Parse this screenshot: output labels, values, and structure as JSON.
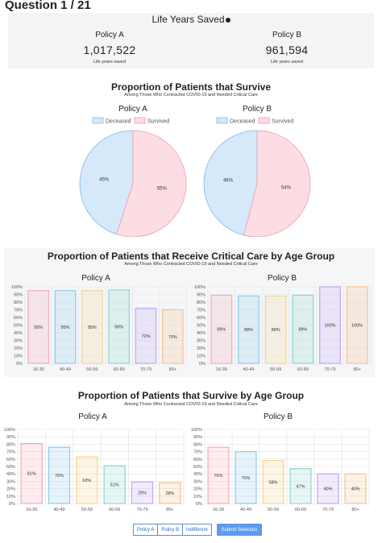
{
  "header": {
    "question": "Question 1 / 21"
  },
  "life_years": {
    "title": "Life Years Saved",
    "info_icon": "info-icon",
    "policy_a": {
      "name": "Policy A",
      "value": "1,017,522",
      "sub": "Life years saved"
    },
    "policy_b": {
      "name": "Policy B",
      "value": "961,594",
      "sub": "Life years saved"
    }
  },
  "colors": {
    "deceased_fill": "#d6e9fa",
    "deceased_line": "#7fb9e6",
    "survived_fill": "#fcdde4",
    "survived_line": "#f29bb0",
    "bar_pink": "#f9a8b8",
    "bar_blue": "#8ec9ee",
    "bar_yellow": "#f8d48f",
    "bar_teal": "#8fd4cf",
    "bar_purple": "#c3a6f2",
    "bar_orange": "#f9c08f",
    "button_accent": "#5b9bf0"
  },
  "sections": {
    "survive": {
      "title": "Proportion of Patients that Survive",
      "subtitle": "Among Those Who Contracted COVID-19 and Needed Critical Care"
    },
    "critical": {
      "title": "Proportion of Patients that Receive Critical Care by Age Group",
      "subtitle": "Among Those Who Contracted COVID-19 and Needed Critical Care"
    },
    "survive_age": {
      "title": "Proportion of Patients that Survive by Age Group",
      "subtitle": "Among Those Who Contracted COVID-19 and Needed Critical Care"
    }
  },
  "buttons": {
    "policy_a": "Policy A",
    "policy_b": "Policy B",
    "indifferent": "Indifferent",
    "submit": "Submit Selection"
  },
  "chart_data": [
    {
      "type": "pie",
      "title": "Policy A",
      "legend": [
        "Deceased",
        "Survived"
      ],
      "legend_position": "top",
      "values": [
        45,
        55
      ],
      "labels": [
        "45%",
        "55%"
      ]
    },
    {
      "type": "pie",
      "title": "Policy B",
      "legend": [
        "Deceased",
        "Survived"
      ],
      "legend_position": "top",
      "values": [
        46,
        54
      ],
      "labels": [
        "46%",
        "54%"
      ]
    },
    {
      "type": "bar",
      "title": "Policy A",
      "categories": [
        "16-39",
        "40-49",
        "50-59",
        "60-69",
        "70-79",
        "80+"
      ],
      "values": [
        95,
        95,
        95,
        96,
        72,
        70
      ],
      "labels": [
        "95%",
        "95%",
        "95%",
        "96%",
        "72%",
        "70%"
      ],
      "ylim": [
        0,
        100
      ],
      "yticks": [
        "0%",
        "10%",
        "20%",
        "30%",
        "40%",
        "50%",
        "60%",
        "70%",
        "80%",
        "90%",
        "100%"
      ],
      "grid": true
    },
    {
      "type": "bar",
      "title": "Policy B",
      "categories": [
        "16-39",
        "40-49",
        "50-59",
        "60-69",
        "70-79",
        "80+"
      ],
      "values": [
        89,
        88,
        88,
        89,
        100,
        100
      ],
      "labels": [
        "89%",
        "88%",
        "88%",
        "89%",
        "100%",
        "100%"
      ],
      "ylim": [
        0,
        100
      ],
      "yticks": [
        "0%",
        "10%",
        "20%",
        "30%",
        "40%",
        "50%",
        "60%",
        "70%",
        "80%",
        "90%",
        "100%"
      ],
      "grid": true
    },
    {
      "type": "bar",
      "title": "Policy A",
      "categories": [
        "16-39",
        "40-49",
        "50-59",
        "60-69",
        "70-79",
        "80+"
      ],
      "values": [
        81,
        76,
        63,
        51,
        29,
        28
      ],
      "labels": [
        "81%",
        "76%",
        "63%",
        "51%",
        "29%",
        "28%"
      ],
      "ylim": [
        0,
        100
      ],
      "yticks": [
        "0%",
        "10%",
        "20%",
        "30%",
        "40%",
        "50%",
        "60%",
        "70%",
        "80%",
        "90%",
        "100%"
      ],
      "grid": true
    },
    {
      "type": "bar",
      "title": "Policy B",
      "categories": [
        "16-39",
        "40-49",
        "50-59",
        "60-69",
        "70-79",
        "80+"
      ],
      "values": [
        76,
        70,
        58,
        47,
        40,
        40
      ],
      "labels": [
        "76%",
        "70%",
        "58%",
        "47%",
        "40%",
        "40%"
      ],
      "ylim": [
        0,
        100
      ],
      "yticks": [
        "0%",
        "10%",
        "20%",
        "30%",
        "40%",
        "50%",
        "60%",
        "70%",
        "80%",
        "90%",
        "100%"
      ],
      "grid": true
    }
  ]
}
